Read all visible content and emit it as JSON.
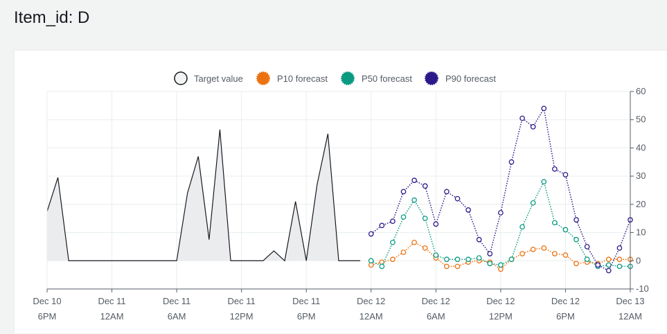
{
  "page": {
    "title": "Item_id: D"
  },
  "colors": {
    "target": "#16191f",
    "target_fill": "#ebecee",
    "p10": "#ec7211",
    "p50": "#0a9a82",
    "p90": "#2a1a8a",
    "grid": "#eaeded",
    "axis": "#545b64"
  },
  "chart_data": {
    "type": "line",
    "title": "",
    "xlabel": "",
    "ylabel": "",
    "ylim": [
      -10,
      60
    ],
    "y_axis_side": "right",
    "grid": true,
    "legend_position": "top-center",
    "x_range": [
      "2024-12-10 18:00",
      "2024-12-13 00:00"
    ],
    "x_ticks": [
      {
        "t": "2024-12-10 18:00",
        "line1": "Dec 10",
        "line2": "6PM"
      },
      {
        "t": "2024-12-11 00:00",
        "line1": "Dec 11",
        "line2": "12AM"
      },
      {
        "t": "2024-12-11 06:00",
        "line1": "Dec 11",
        "line2": "6AM"
      },
      {
        "t": "2024-12-11 12:00",
        "line1": "Dec 11",
        "line2": "12PM"
      },
      {
        "t": "2024-12-11 18:00",
        "line1": "Dec 11",
        "line2": "6PM"
      },
      {
        "t": "2024-12-12 00:00",
        "line1": "Dec 12",
        "line2": "12AM"
      },
      {
        "t": "2024-12-12 06:00",
        "line1": "Dec 12",
        "line2": "6AM"
      },
      {
        "t": "2024-12-12 12:00",
        "line1": "Dec 12",
        "line2": "12PM"
      },
      {
        "t": "2024-12-12 18:00",
        "line1": "Dec 12",
        "line2": "6PM"
      },
      {
        "t": "2024-12-13 00:00",
        "line1": "Dec 13",
        "line2": "12AM"
      }
    ],
    "y_ticks": [
      60,
      50,
      40,
      30,
      20,
      10,
      0,
      -10
    ],
    "series": [
      {
        "name": "Target value",
        "kind": "area",
        "x": [
          "2024-12-10 18:00",
          "2024-12-10 19:00",
          "2024-12-10 20:00",
          "2024-12-10 21:00",
          "2024-12-10 22:00",
          "2024-12-10 23:00",
          "2024-12-11 00:00",
          "2024-12-11 01:00",
          "2024-12-11 02:00",
          "2024-12-11 03:00",
          "2024-12-11 04:00",
          "2024-12-11 05:00",
          "2024-12-11 06:00",
          "2024-12-11 07:00",
          "2024-12-11 08:00",
          "2024-12-11 09:00",
          "2024-12-11 10:00",
          "2024-12-11 11:00",
          "2024-12-11 12:00",
          "2024-12-11 13:00",
          "2024-12-11 14:00",
          "2024-12-11 15:00",
          "2024-12-11 16:00",
          "2024-12-11 17:00",
          "2024-12-11 18:00",
          "2024-12-11 19:00",
          "2024-12-11 20:00",
          "2024-12-11 21:00",
          "2024-12-11 22:00",
          "2024-12-11 23:00"
        ],
        "values": [
          17.5,
          29.5,
          0,
          0,
          0,
          0,
          0,
          0,
          0,
          0,
          0,
          0,
          0,
          24,
          37,
          7.5,
          46.5,
          0,
          0,
          0,
          0,
          3.5,
          0,
          21,
          0,
          27,
          45,
          0,
          0,
          0
        ]
      },
      {
        "name": "P10 forecast",
        "kind": "line",
        "x": [
          "2024-12-12 00:00",
          "2024-12-12 01:00",
          "2024-12-12 02:00",
          "2024-12-12 03:00",
          "2024-12-12 04:00",
          "2024-12-12 05:00",
          "2024-12-12 06:00",
          "2024-12-12 07:00",
          "2024-12-12 08:00",
          "2024-12-12 09:00",
          "2024-12-12 10:00",
          "2024-12-12 11:00",
          "2024-12-12 12:00",
          "2024-12-12 13:00",
          "2024-12-12 14:00",
          "2024-12-12 15:00",
          "2024-12-12 16:00",
          "2024-12-12 17:00",
          "2024-12-12 18:00",
          "2024-12-12 19:00",
          "2024-12-12 20:00",
          "2024-12-12 21:00",
          "2024-12-12 22:00",
          "2024-12-12 23:00",
          "2024-12-13 00:00"
        ],
        "values": [
          -1.5,
          -0.5,
          0.5,
          3,
          6.5,
          4.5,
          1,
          -2,
          -2,
          -0.5,
          0,
          -0.5,
          -3,
          0.5,
          2.5,
          4,
          4.5,
          2.5,
          2,
          -1,
          -0.5,
          -1,
          0.5,
          0.5,
          0.5
        ]
      },
      {
        "name": "P50 forecast",
        "kind": "line",
        "x": [
          "2024-12-12 00:00",
          "2024-12-12 01:00",
          "2024-12-12 02:00",
          "2024-12-12 03:00",
          "2024-12-12 04:00",
          "2024-12-12 05:00",
          "2024-12-12 06:00",
          "2024-12-12 07:00",
          "2024-12-12 08:00",
          "2024-12-12 09:00",
          "2024-12-12 10:00",
          "2024-12-12 11:00",
          "2024-12-12 12:00",
          "2024-12-12 13:00",
          "2024-12-12 14:00",
          "2024-12-12 15:00",
          "2024-12-12 16:00",
          "2024-12-12 17:00",
          "2024-12-12 18:00",
          "2024-12-12 19:00",
          "2024-12-12 20:00",
          "2024-12-12 21:00",
          "2024-12-12 22:00",
          "2024-12-12 23:00",
          "2024-12-13 00:00"
        ],
        "values": [
          0,
          -2,
          6.5,
          15.5,
          21.5,
          15,
          2,
          0.5,
          0.5,
          0.5,
          1,
          -1,
          -1.5,
          0.5,
          12,
          20.5,
          28,
          13.5,
          11,
          7.5,
          0.5,
          -2,
          -1.5,
          -2,
          -2
        ]
      },
      {
        "name": "P90 forecast",
        "kind": "line",
        "x": [
          "2024-12-12 00:00",
          "2024-12-12 01:00",
          "2024-12-12 02:00",
          "2024-12-12 03:00",
          "2024-12-12 04:00",
          "2024-12-12 05:00",
          "2024-12-12 06:00",
          "2024-12-12 07:00",
          "2024-12-12 08:00",
          "2024-12-12 09:00",
          "2024-12-12 10:00",
          "2024-12-12 11:00",
          "2024-12-12 12:00",
          "2024-12-12 13:00",
          "2024-12-12 14:00",
          "2024-12-12 15:00",
          "2024-12-12 16:00",
          "2024-12-12 17:00",
          "2024-12-12 18:00",
          "2024-12-12 19:00",
          "2024-12-12 20:00",
          "2024-12-12 21:00",
          "2024-12-12 22:00",
          "2024-12-12 23:00",
          "2024-12-13 00:00"
        ],
        "values": [
          9.5,
          12.5,
          14,
          24.5,
          28.5,
          26.5,
          13,
          24.5,
          22,
          18,
          7.5,
          2.5,
          17,
          35,
          50.5,
          47.5,
          54,
          32.5,
          30.5,
          14.5,
          5,
          -1.5,
          -3.5,
          4.5,
          14.5
        ]
      }
    ]
  }
}
